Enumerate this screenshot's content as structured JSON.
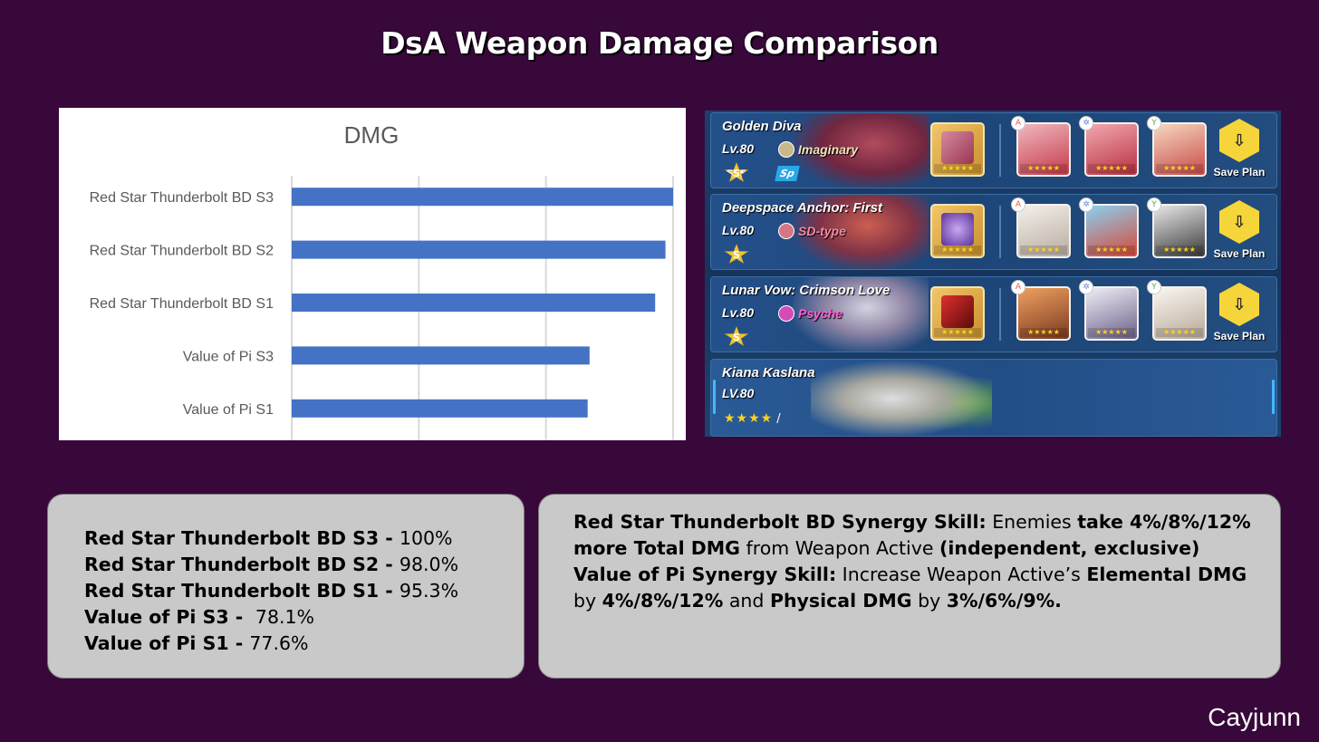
{
  "page": {
    "title": "DsA Weapon Damage Comparison",
    "credit": "Cayjunn"
  },
  "chart_data": {
    "type": "bar",
    "orientation": "horizontal",
    "title": "DMG",
    "categories": [
      "Red Star Thunderbolt BD S3",
      "Red Star Thunderbolt BD S2",
      "Red Star Thunderbolt BD S1",
      "Value of Pi S3",
      "Value of Pi S1"
    ],
    "values": [
      100,
      98.0,
      95.3,
      78.1,
      77.6
    ],
    "xlim": [
      0,
      100
    ],
    "grid": true,
    "bar_color": "#4472c4",
    "gridline_color": "#d9d9d9",
    "label_color": "#595959"
  },
  "team_plans": [
    {
      "name": "Golden Diva",
      "level": "Lv.80",
      "type": "Imaginary",
      "type_color": "#f1e4b8",
      "rank": "SSS",
      "badge": "Sp",
      "stigma_tags": [
        "A",
        "✲",
        "Y"
      ],
      "save_label": "Save Plan"
    },
    {
      "name": "Deepspace Anchor: First",
      "level": "Lv.80",
      "type": "SD-type",
      "type_color": "#f08ba0",
      "rank": "S",
      "stigma_tags": [
        "A",
        "✲",
        "Y"
      ],
      "save_label": "Save Plan"
    },
    {
      "name": "Lunar Vow: Crimson Love",
      "level": "Lv.80",
      "type": "Psyche",
      "type_color": "#ff5fd8",
      "rank": "S",
      "stigma_tags": [
        "A",
        "✲",
        "Y"
      ],
      "save_label": "Save Plan"
    },
    {
      "name": "Kiana Kaslana",
      "level": "LV.80",
      "stars": "★★★★",
      "star_sep": "/"
    }
  ],
  "stats_box": {
    "lines": [
      {
        "label": "Red Star Thunderbolt BD S3 - ",
        "value": "100%"
      },
      {
        "label": "Red Star Thunderbolt BD S2 - ",
        "value": "98.0%"
      },
      {
        "label": "Red Star Thunderbolt BD S1 - ",
        "value": "95.3%"
      },
      {
        "label": "Value of Pi S3 - ",
        "value": " 78.1%"
      },
      {
        "label": "Value of Pi S1 - ",
        "value": "77.6%"
      }
    ]
  },
  "synergy_box": {
    "p1_a": "Red Star Thunderbolt BD Synergy Skill:",
    "p1_b": " Enemies ",
    "p1_c": "take 4%/8%/12% more Total DMG",
    "p1_d": " from Weapon Active ",
    "p1_e": "(independent, exclusive)",
    "p2_a": "Value of Pi Synergy Skill:",
    "p2_b": " Increase Weapon Active’s ",
    "p2_c": "Elemental DMG",
    "p2_d": " by ",
    "p2_e": "4%/8%/12%",
    "p2_f": " and ",
    "p2_g": "Physical DMG",
    "p2_h": " by ",
    "p2_i": "3%/6%/9%."
  }
}
